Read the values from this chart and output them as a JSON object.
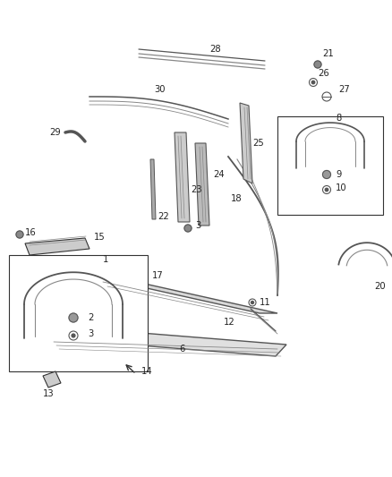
{
  "bg_color": "#ffffff",
  "fig_width": 4.38,
  "fig_height": 5.33,
  "dpi": 100,
  "gray": "#555555",
  "lgray": "#888888",
  "dgray": "#333333"
}
